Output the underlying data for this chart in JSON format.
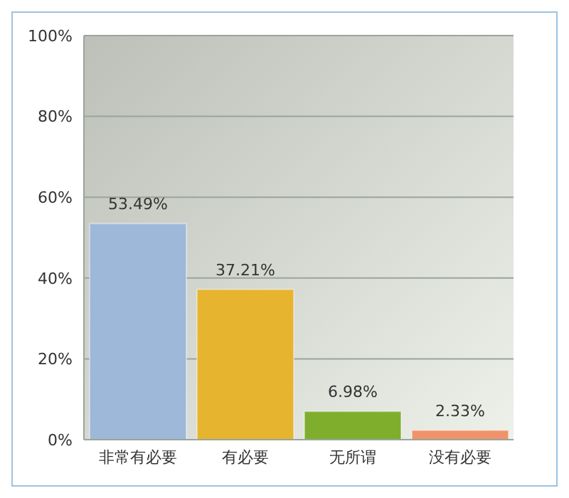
{
  "chart_data": {
    "type": "bar",
    "categories": [
      "非常有必要",
      "有必要",
      "无所谓",
      "没有必要"
    ],
    "values": [
      53.49,
      37.21,
      6.98,
      2.33
    ],
    "colors": [
      "#9db8d8",
      "#e6b42e",
      "#7fae2c",
      "#f0936a"
    ],
    "value_labels": [
      "53.49%",
      "37.21%",
      "6.98%",
      "2.33%"
    ],
    "ylim": [
      0,
      100
    ],
    "yticks": [
      {
        "value": 0,
        "label": "0%"
      },
      {
        "value": 20,
        "label": "20%"
      },
      {
        "value": 40,
        "label": "40%"
      },
      {
        "value": 60,
        "label": "60%"
      },
      {
        "value": 80,
        "label": "80%"
      },
      {
        "value": 100,
        "label": "100%"
      }
    ],
    "grid": "y"
  }
}
